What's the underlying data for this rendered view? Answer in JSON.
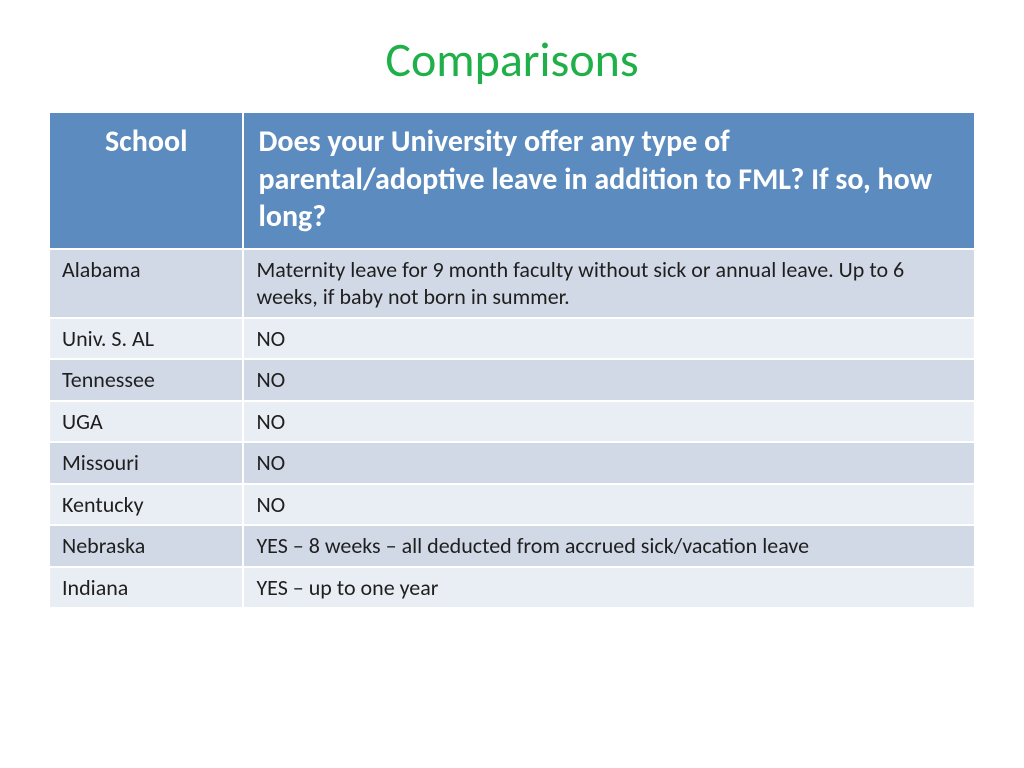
{
  "title": "Comparisons",
  "title_color": "#1fb04a",
  "header_bg": "#5b8bbf",
  "header_text_color": "#ffffff",
  "row_bg_odd": "#d1d8e6",
  "row_bg_even": "#e9edf4",
  "row_text_color": "#1f1f1f",
  "columns": {
    "school": "School",
    "answer": "Does your University offer any type of parental/adoptive leave in addition to FML?  If so, how long?"
  },
  "rows": [
    {
      "school": "Alabama",
      "answer": "Maternity leave for 9 month faculty without sick or annual leave.  Up to 6 weeks, if baby not born in summer."
    },
    {
      "school": "Univ. S. AL",
      "answer": "NO"
    },
    {
      "school": "Tennessee",
      "answer": "NO"
    },
    {
      "school": "UGA",
      "answer": "NO"
    },
    {
      "school": "Missouri",
      "answer": "NO"
    },
    {
      "school": "Kentucky",
      "answer": "NO"
    },
    {
      "school": "Nebraska",
      "answer": "YES – 8 weeks – all deducted from accrued sick/vacation leave"
    },
    {
      "school": "Indiana",
      "answer": "YES – up to one year"
    }
  ]
}
